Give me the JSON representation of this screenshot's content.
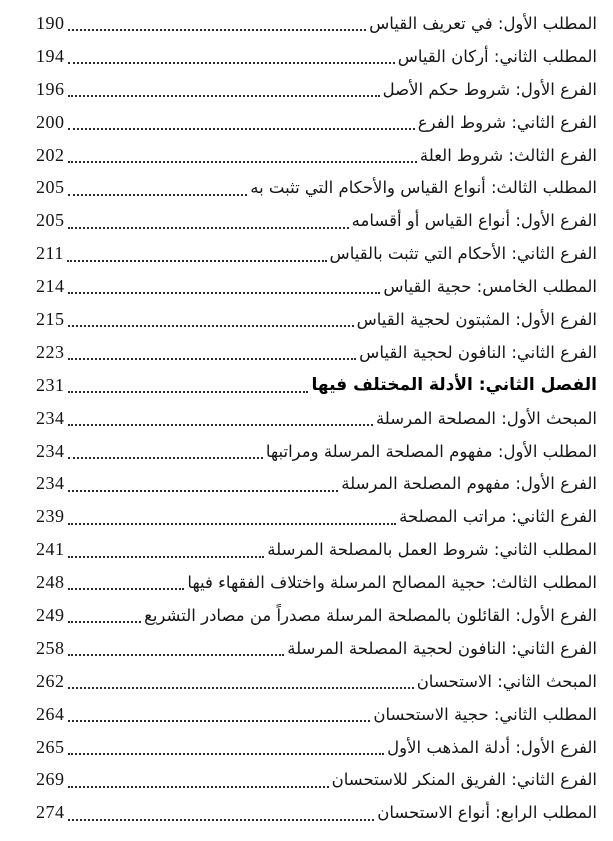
{
  "toc": {
    "entries": [
      {
        "title": "المطلب الأول: في تعريف القياس",
        "page": "190",
        "bold": false
      },
      {
        "title": "المطلب الثاني: أركان القياس",
        "page": "194",
        "bold": false
      },
      {
        "title": "الفرع الأول: شروط حكم الأصل",
        "page": "196",
        "bold": false
      },
      {
        "title": "الفرع الثاني: شروط الفرع",
        "page": "200",
        "bold": false
      },
      {
        "title": "الفرع الثالث: شروط العلة",
        "page": "202",
        "bold": false
      },
      {
        "title": "المطلب الثالث: أنواع القياس والأحكام التي تثبت به",
        "page": "205",
        "bold": false
      },
      {
        "title": "الفرع الأول: أنواع القياس أو أقسامه",
        "page": "205",
        "bold": false
      },
      {
        "title": "الفرع الثاني: الأحكام التي تثبت بالقياس",
        "page": "211",
        "bold": false
      },
      {
        "title": "المطلب الخامس: حجية القياس",
        "page": "214",
        "bold": false
      },
      {
        "title": "الفرع الأول: المثبتون لحجية القياس",
        "page": "215",
        "bold": false
      },
      {
        "title": "الفرع الثاني: النافون لحجية القياس",
        "page": "223",
        "bold": false
      },
      {
        "title": "الفصل الثاني: الأدلة المختلف فيها",
        "page": "231",
        "bold": true
      },
      {
        "title": "المبحث الأول: المصلحة المرسلة",
        "page": "234",
        "bold": false
      },
      {
        "title": "المطلب الأول: مفهوم المصلحة المرسلة ومراتبها",
        "page": "234",
        "bold": false
      },
      {
        "title": "الفرع الأول: مفهوم المصلحة المرسلة",
        "page": "234",
        "bold": false
      },
      {
        "title": "الفرع الثاني: مراتب المصلحة",
        "page": "239",
        "bold": false
      },
      {
        "title": "المطلب الثاني: شروط العمل بالمصلحة المرسلة",
        "page": "241",
        "bold": false
      },
      {
        "title": "المطلب الثالث: حجية المصالح المرسلة واختلاف الفقهاء فيها",
        "page": "248",
        "bold": false
      },
      {
        "title": "الفرع الأول: القائلون بالمصلحة المرسلة مصدراً من مصادر التشريع",
        "page": "249",
        "bold": false
      },
      {
        "title": "الفرع الثاني: النافون لحجية المصلحة المرسلة",
        "page": "258",
        "bold": false
      },
      {
        "title": "المبحث الثاني: الاستحسان",
        "page": "262",
        "bold": false
      },
      {
        "title": "المطلب الثاني: حجية الاستحسان",
        "page": "264",
        "bold": false
      },
      {
        "title": "الفرع الأول: أدلة المذهب الأول",
        "page": "265",
        "bold": false
      },
      {
        "title": "الفرع الثاني: الفريق المنكر للاستحسان",
        "page": "269",
        "bold": false
      },
      {
        "title": "المطلب الرابع: أنواع الاستحسان",
        "page": "274",
        "bold": false
      }
    ]
  }
}
